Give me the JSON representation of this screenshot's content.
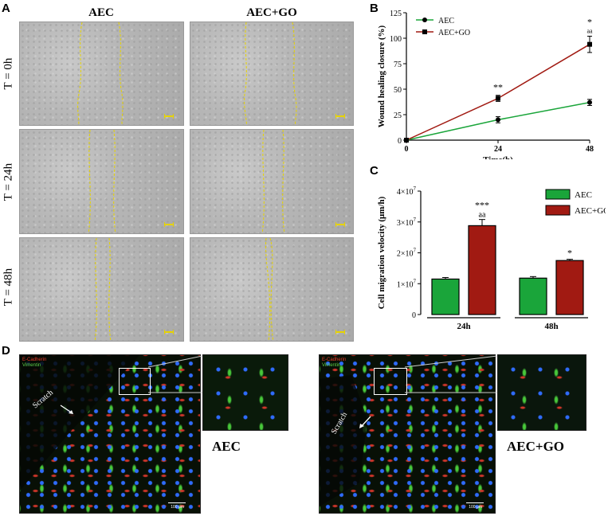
{
  "panel_a": {
    "letter": "A",
    "columns": [
      "AEC",
      "AEC+GO"
    ],
    "rows": [
      "T = 0h",
      "T = 24h",
      "T = 48h"
    ]
  },
  "panel_b": {
    "letter": "B"
  },
  "panel_c": {
    "letter": "C"
  },
  "panel_d": {
    "letter": "D",
    "left": {
      "stain1": "E-Cadherin",
      "stain2": "Vimentin",
      "scratch": "Scratch",
      "caption": "AEC",
      "scale": "100 μm"
    },
    "right": {
      "stain1": "E-Cadherin",
      "stain2": "Vimentin",
      "scratch": "Scratch",
      "caption": "AEC+GO",
      "scale": "100 μm"
    }
  },
  "colors": {
    "aec": "#1aa53a",
    "aec_go": "#a11a12",
    "wound_line": "#e6d300"
  },
  "chart_data": [
    {
      "type": "line",
      "x": [
        0,
        24,
        48
      ],
      "xlabel": "Time(h)",
      "ylabel": "Wound healing closure (%)",
      "ylim": [
        0,
        125
      ],
      "yticks": [
        0,
        25,
        50,
        75,
        100,
        125
      ],
      "xticks": [
        0,
        24,
        48
      ],
      "legend": "top-left",
      "series": [
        {
          "name": "AEC",
          "values": [
            0,
            20,
            37
          ],
          "errors": [
            0,
            3,
            3
          ],
          "color": "#1aa53a",
          "marker": "circle"
        },
        {
          "name": "AEC+GO",
          "values": [
            0,
            41,
            94
          ],
          "errors": [
            0,
            3,
            8
          ],
          "color": "#a11a12",
          "marker": "square"
        }
      ],
      "annotations": [
        {
          "x": 24,
          "text": "**"
        },
        {
          "x": 48,
          "text": "*"
        },
        {
          "x": 48,
          "text": "aa"
        }
      ]
    },
    {
      "type": "bar",
      "categories": [
        "24h",
        "48h"
      ],
      "ylabel": "Cell migration velocity (μm/h)",
      "ylim": [
        0,
        40000000
      ],
      "yticks": [
        0,
        10000000,
        20000000,
        30000000,
        40000000
      ],
      "ytick_labels": [
        "0",
        "1×10",
        "2×10",
        "3×10",
        "4×10"
      ],
      "ytick_exponent": "7",
      "legend": "top-right",
      "series": [
        {
          "name": "AEC",
          "values": [
            11500000,
            11800000
          ],
          "errors": [
            500000,
            500000
          ],
          "color": "#1aa53a"
        },
        {
          "name": "AEC+GO",
          "values": [
            28800000,
            17500000
          ],
          "errors": [
            2000000,
            400000
          ],
          "color": "#a11a12"
        }
      ],
      "annotations": [
        {
          "category": "24h",
          "series": "AEC+GO",
          "text": "***"
        },
        {
          "category": "24h",
          "series": "AEC+GO",
          "text": "aa"
        },
        {
          "category": "48h",
          "series": "AEC+GO",
          "text": "*"
        }
      ]
    }
  ]
}
